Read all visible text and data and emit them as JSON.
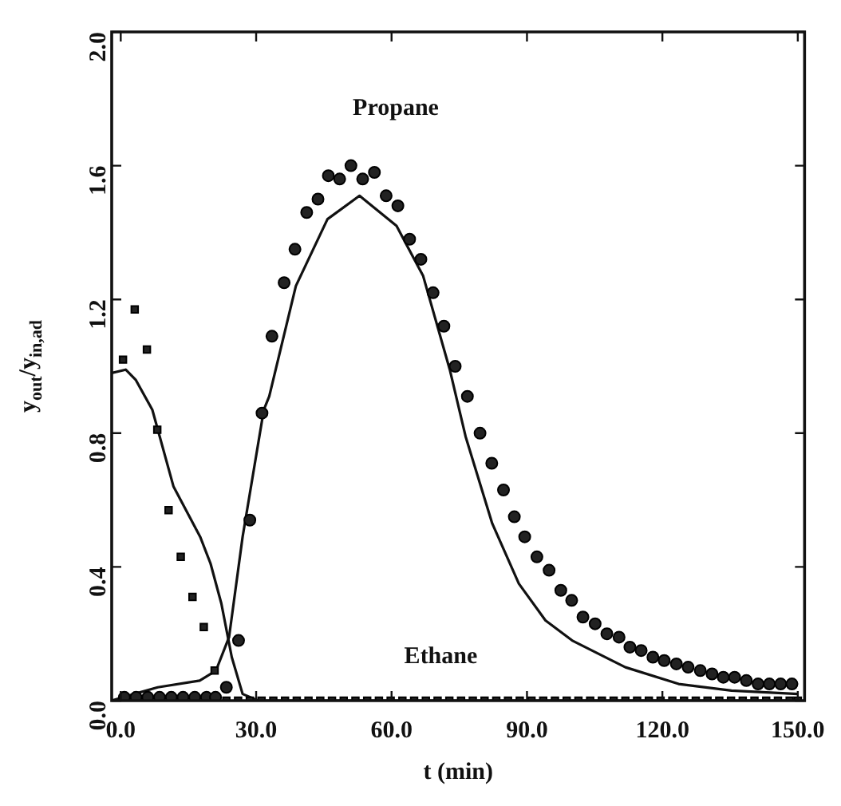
{
  "chart_data": {
    "type": "scatter",
    "xlabel": "t (min)",
    "ylabel": "y$_{out}$/y$_{in,ad}$",
    "xlim": [
      -2,
      151.5
    ],
    "ylim": [
      0,
      2
    ],
    "xticks": [
      {
        "value": 0,
        "label": "0.0"
      },
      {
        "value": 30,
        "label": "30.0"
      },
      {
        "value": 60,
        "label": "60.0"
      },
      {
        "value": 90,
        "label": "90.0"
      },
      {
        "value": 120,
        "label": "120.0"
      },
      {
        "value": 150,
        "label": "150.0"
      }
    ],
    "yticks": [
      {
        "value": 0,
        "label": "0.0"
      },
      {
        "value": 0.4,
        "label": "0.4"
      },
      {
        "value": 0.8,
        "label": "0.8"
      },
      {
        "value": 1.2,
        "label": "1.2"
      },
      {
        "value": 1.6,
        "label": "1.6"
      },
      {
        "value": 2,
        "label": "2.0"
      }
    ],
    "grid": false,
    "legend": false,
    "annotations": [
      "Propane",
      "Ethane"
    ],
    "series": [
      {
        "marker": "circle",
        "color": "#222222",
        "x": [
          0.8,
          3.4,
          6,
          8.6,
          11.2,
          13.8,
          16.4,
          19,
          21,
          23.4,
          26.1,
          28.6,
          31.3,
          33.5,
          36.2,
          38.6,
          41.2,
          43.7,
          46,
          48.5,
          51,
          53.6,
          56.2,
          58.8,
          61.4,
          64,
          66.5,
          69.2,
          71.6,
          74.1,
          76.8,
          79.6,
          82.2,
          84.8,
          87.2,
          89.5,
          92.2,
          94.9,
          97.5,
          99.9,
          102.4,
          105.1,
          107.7,
          110.4,
          112.8,
          115.3,
          117.9,
          120.4,
          123.1,
          125.7,
          128.4,
          131,
          133.5,
          136,
          138.6,
          141.2,
          143.7,
          146.2,
          148.7
        ],
        "values": [
          0.01,
          0.01,
          0.01,
          0.01,
          0.01,
          0.01,
          0.01,
          0.01,
          0.01,
          0.04,
          0.18,
          0.54,
          0.86,
          1.09,
          1.25,
          1.35,
          1.46,
          1.5,
          1.57,
          1.56,
          1.6,
          1.56,
          1.58,
          1.51,
          1.48,
          1.38,
          1.32,
          1.22,
          1.12,
          1.0,
          0.91,
          0.8,
          0.71,
          0.63,
          0.55,
          0.49,
          0.43,
          0.39,
          0.33,
          0.3,
          0.25,
          0.23,
          0.2,
          0.19,
          0.16,
          0.15,
          0.13,
          0.12,
          0.11,
          0.1,
          0.09,
          0.08,
          0.07,
          0.07,
          0.06,
          0.05,
          0.05,
          0.05,
          0.05
        ]
      },
      {
        "marker": "square",
        "color": "#222222",
        "x": [
          0.5,
          3.1,
          5.8,
          8.1,
          10.6,
          13.3,
          15.9,
          18.4,
          20.8,
          23.4,
          26,
          28.6,
          31.2,
          33.8,
          36.4,
          39,
          41.6,
          44.2,
          46.8,
          49.4,
          52,
          54.6,
          57.2,
          59.8,
          62.4,
          65,
          67.6,
          70.2,
          72.8,
          75.4,
          78,
          80.6,
          83.2,
          85.8,
          88.4,
          91,
          93.6,
          96.2,
          98.8,
          101.4,
          104,
          106.6,
          109.2,
          111.8,
          114.4,
          117,
          119.6,
          122.2,
          124.8,
          127.4,
          130,
          132.6,
          135.2,
          137.8,
          140.4,
          143,
          145.6,
          148.2,
          150
        ],
        "values": [
          1.02,
          1.17,
          1.05,
          0.81,
          0.57,
          0.43,
          0.31,
          0.22,
          0.09,
          0,
          0,
          0,
          0,
          0,
          0,
          0,
          0,
          0,
          0,
          0,
          0,
          0,
          0,
          0,
          0,
          0,
          0,
          0,
          0,
          0,
          0,
          0,
          0,
          0,
          0,
          0,
          0,
          0,
          0,
          0,
          0,
          0,
          0,
          0,
          0,
          0,
          0,
          0,
          0,
          0,
          0,
          0,
          0,
          0,
          0,
          0,
          0,
          0,
          0
        ]
      },
      {
        "type": "line",
        "marker": "none",
        "line_style": "solid",
        "color": "#111111",
        "x": [
          -2,
          3,
          8.2,
          17.5,
          21.1,
          24,
          27,
          31.7,
          32.9,
          38.8,
          45.8,
          52.9,
          61.1,
          67,
          72.9,
          76.4,
          82.3,
          88.2,
          94.1,
          100,
          111.8,
          123.6,
          135.3,
          150
        ],
        "values": [
          0,
          0.02,
          0.04,
          0.06,
          0.09,
          0.19,
          0.49,
          0.87,
          0.91,
          1.24,
          1.44,
          1.51,
          1.42,
          1.27,
          0.99,
          0.79,
          0.53,
          0.35,
          0.24,
          0.18,
          0.1,
          0.05,
          0.03,
          0.02
        ]
      },
      {
        "type": "line",
        "marker": "none",
        "line_style": "solid",
        "color": "#111111",
        "x": [
          -2,
          1.1,
          3.3,
          7,
          11.7,
          17.6,
          19.9,
          22.3,
          24.6,
          27,
          30.5,
          150
        ],
        "values": [
          0.98,
          0.99,
          0.96,
          0.87,
          0.64,
          0.49,
          0.41,
          0.29,
          0.13,
          0.02,
          0,
          0
        ]
      }
    ]
  }
}
